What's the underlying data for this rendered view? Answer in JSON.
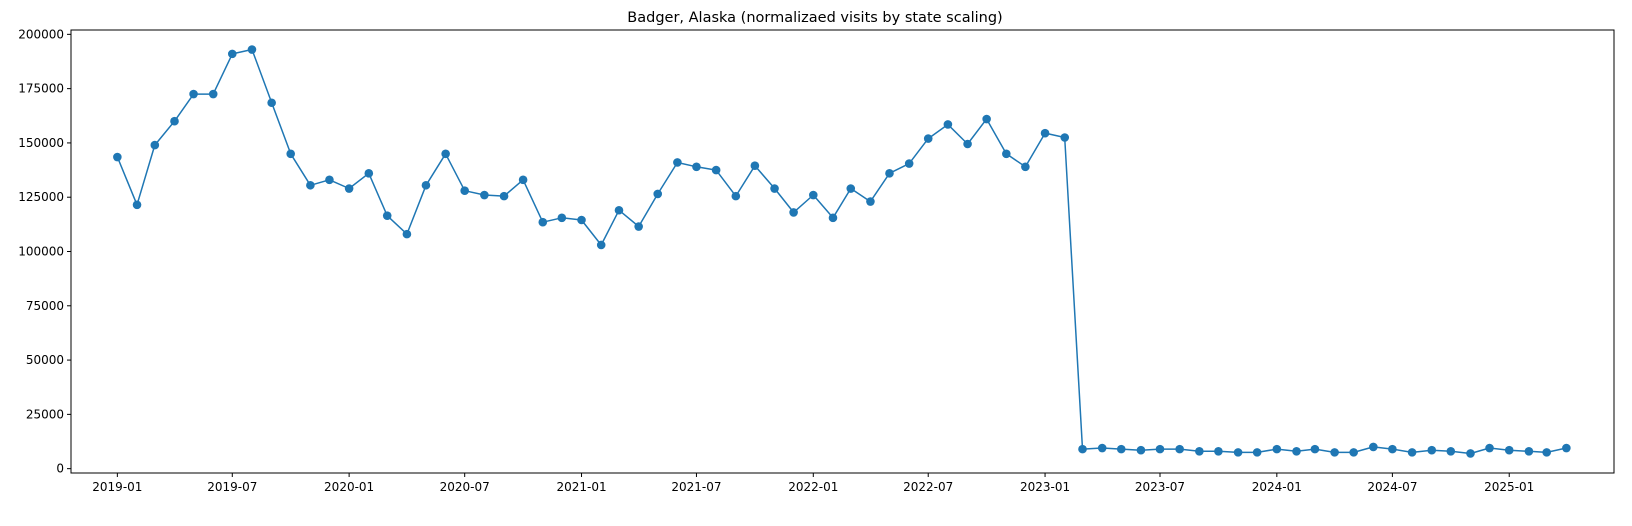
{
  "chart_data": {
    "type": "line",
    "title": "Badger, Alaska (normalizaed visits by state scaling)",
    "xlabel": "",
    "ylabel": "",
    "ylim": [
      -2000,
      202000
    ],
    "xlim": [
      "2018-10-20",
      "2025-06-15"
    ],
    "grid": false,
    "legend": "none",
    "colors": {
      "line": "#1f77b4"
    },
    "yticks": [
      0,
      25000,
      50000,
      75000,
      100000,
      125000,
      150000,
      175000,
      200000
    ],
    "xticks": [
      "2019-01",
      "2019-07",
      "2020-01",
      "2020-07",
      "2021-01",
      "2021-07",
      "2022-01",
      "2022-07",
      "2023-01",
      "2023-07",
      "2024-01",
      "2024-07",
      "2025-01"
    ],
    "series": [
      {
        "x": [
          "2019-01",
          "2019-02",
          "2019-03",
          "2019-04",
          "2019-05",
          "2019-06",
          "2019-07",
          "2019-08",
          "2019-09",
          "2019-10",
          "2019-11",
          "2019-12",
          "2020-01",
          "2020-02",
          "2020-03",
          "2020-04",
          "2020-05",
          "2020-06",
          "2020-07",
          "2020-08",
          "2020-09",
          "2020-10",
          "2020-11",
          "2020-12",
          "2021-01",
          "2021-02",
          "2021-03",
          "2021-04",
          "2021-05",
          "2021-06",
          "2021-07",
          "2021-08",
          "2021-09",
          "2021-10",
          "2021-11",
          "2021-12",
          "2022-01",
          "2022-02",
          "2022-03",
          "2022-04",
          "2022-05",
          "2022-06",
          "2022-07",
          "2022-08",
          "2022-09",
          "2022-10",
          "2022-11",
          "2022-12",
          "2023-01",
          "2023-02",
          "2023-03",
          "2023-04",
          "2023-05",
          "2023-06",
          "2023-07",
          "2023-08",
          "2023-09",
          "2023-10",
          "2023-11",
          "2023-12",
          "2024-01",
          "2024-02",
          "2024-03",
          "2024-04",
          "2024-05",
          "2024-06",
          "2024-07",
          "2024-08",
          "2024-09",
          "2024-10",
          "2024-11",
          "2024-12",
          "2025-01",
          "2025-02",
          "2025-03",
          "2025-04"
        ],
        "values": [
          143500,
          121500,
          149000,
          160000,
          172500,
          172500,
          191000,
          193000,
          168500,
          145000,
          130500,
          133000,
          129000,
          136000,
          116500,
          108000,
          130500,
          145000,
          128000,
          126000,
          125500,
          133000,
          113500,
          115500,
          114500,
          103000,
          119000,
          111500,
          126500,
          141000,
          139000,
          137500,
          125500,
          139500,
          129000,
          118000,
          126000,
          115500,
          129000,
          123000,
          136000,
          140500,
          152000,
          158500,
          149500,
          161000,
          145000,
          139000,
          154500,
          152500,
          9000,
          9500,
          9000,
          8500,
          9000,
          9000,
          8000,
          8000,
          7500,
          7500,
          9000,
          8000,
          9000,
          7500,
          7500,
          10000,
          9000,
          7500,
          8500,
          8000,
          7000,
          9500,
          8500,
          8000,
          7500,
          9500
        ]
      }
    ]
  }
}
